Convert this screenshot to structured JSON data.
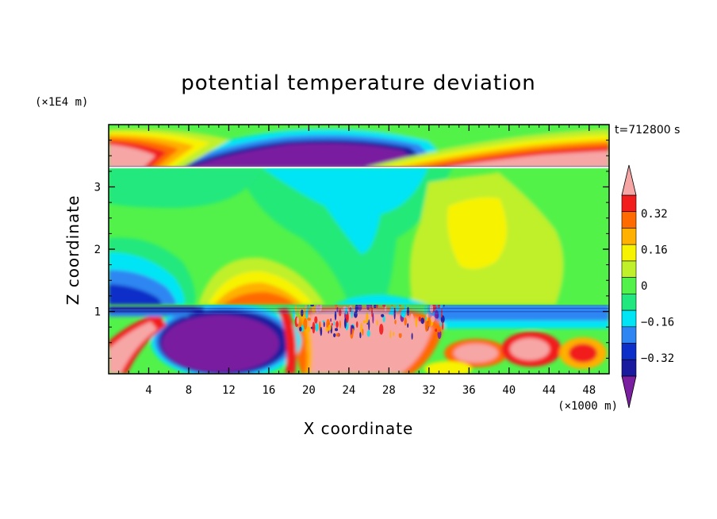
{
  "chart_data": {
    "type": "heatmap",
    "title": "potential temperature deviation",
    "xlabel": "X coordinate",
    "ylabel": "Z coordinate",
    "x_unit": "(×1000 m)",
    "y_unit": "(×1E4 m)",
    "time_label": "t=712800 s",
    "xlim": [
      0,
      50
    ],
    "ylim": [
      0,
      4.0
    ],
    "x_ticks": [
      4,
      8,
      12,
      16,
      20,
      24,
      28,
      32,
      36,
      40,
      44,
      48
    ],
    "y_ticks": [
      1,
      2,
      3
    ],
    "colorbar": {
      "levels": [
        -0.48,
        -0.4,
        -0.32,
        -0.24,
        -0.16,
        -0.08,
        0,
        0.08,
        0.16,
        0.24,
        0.32,
        0.4,
        0.48
      ],
      "tick_labels": [
        "0.32",
        "0.16",
        "0",
        "−0.16",
        "−0.32"
      ],
      "tick_values": [
        0.32,
        0.16,
        0,
        -0.16,
        -0.32
      ],
      "colors": [
        "#7a1fa0",
        "#1a1a9e",
        "#0b2fc8",
        "#2f86f2",
        "#00e5f5",
        "#20e87e",
        "#52f24a",
        "#bff02a",
        "#f7f300",
        "#ffb000",
        "#ff6b00",
        "#f21d1d",
        "#f7a6a6"
      ],
      "extend": "both"
    }
  }
}
